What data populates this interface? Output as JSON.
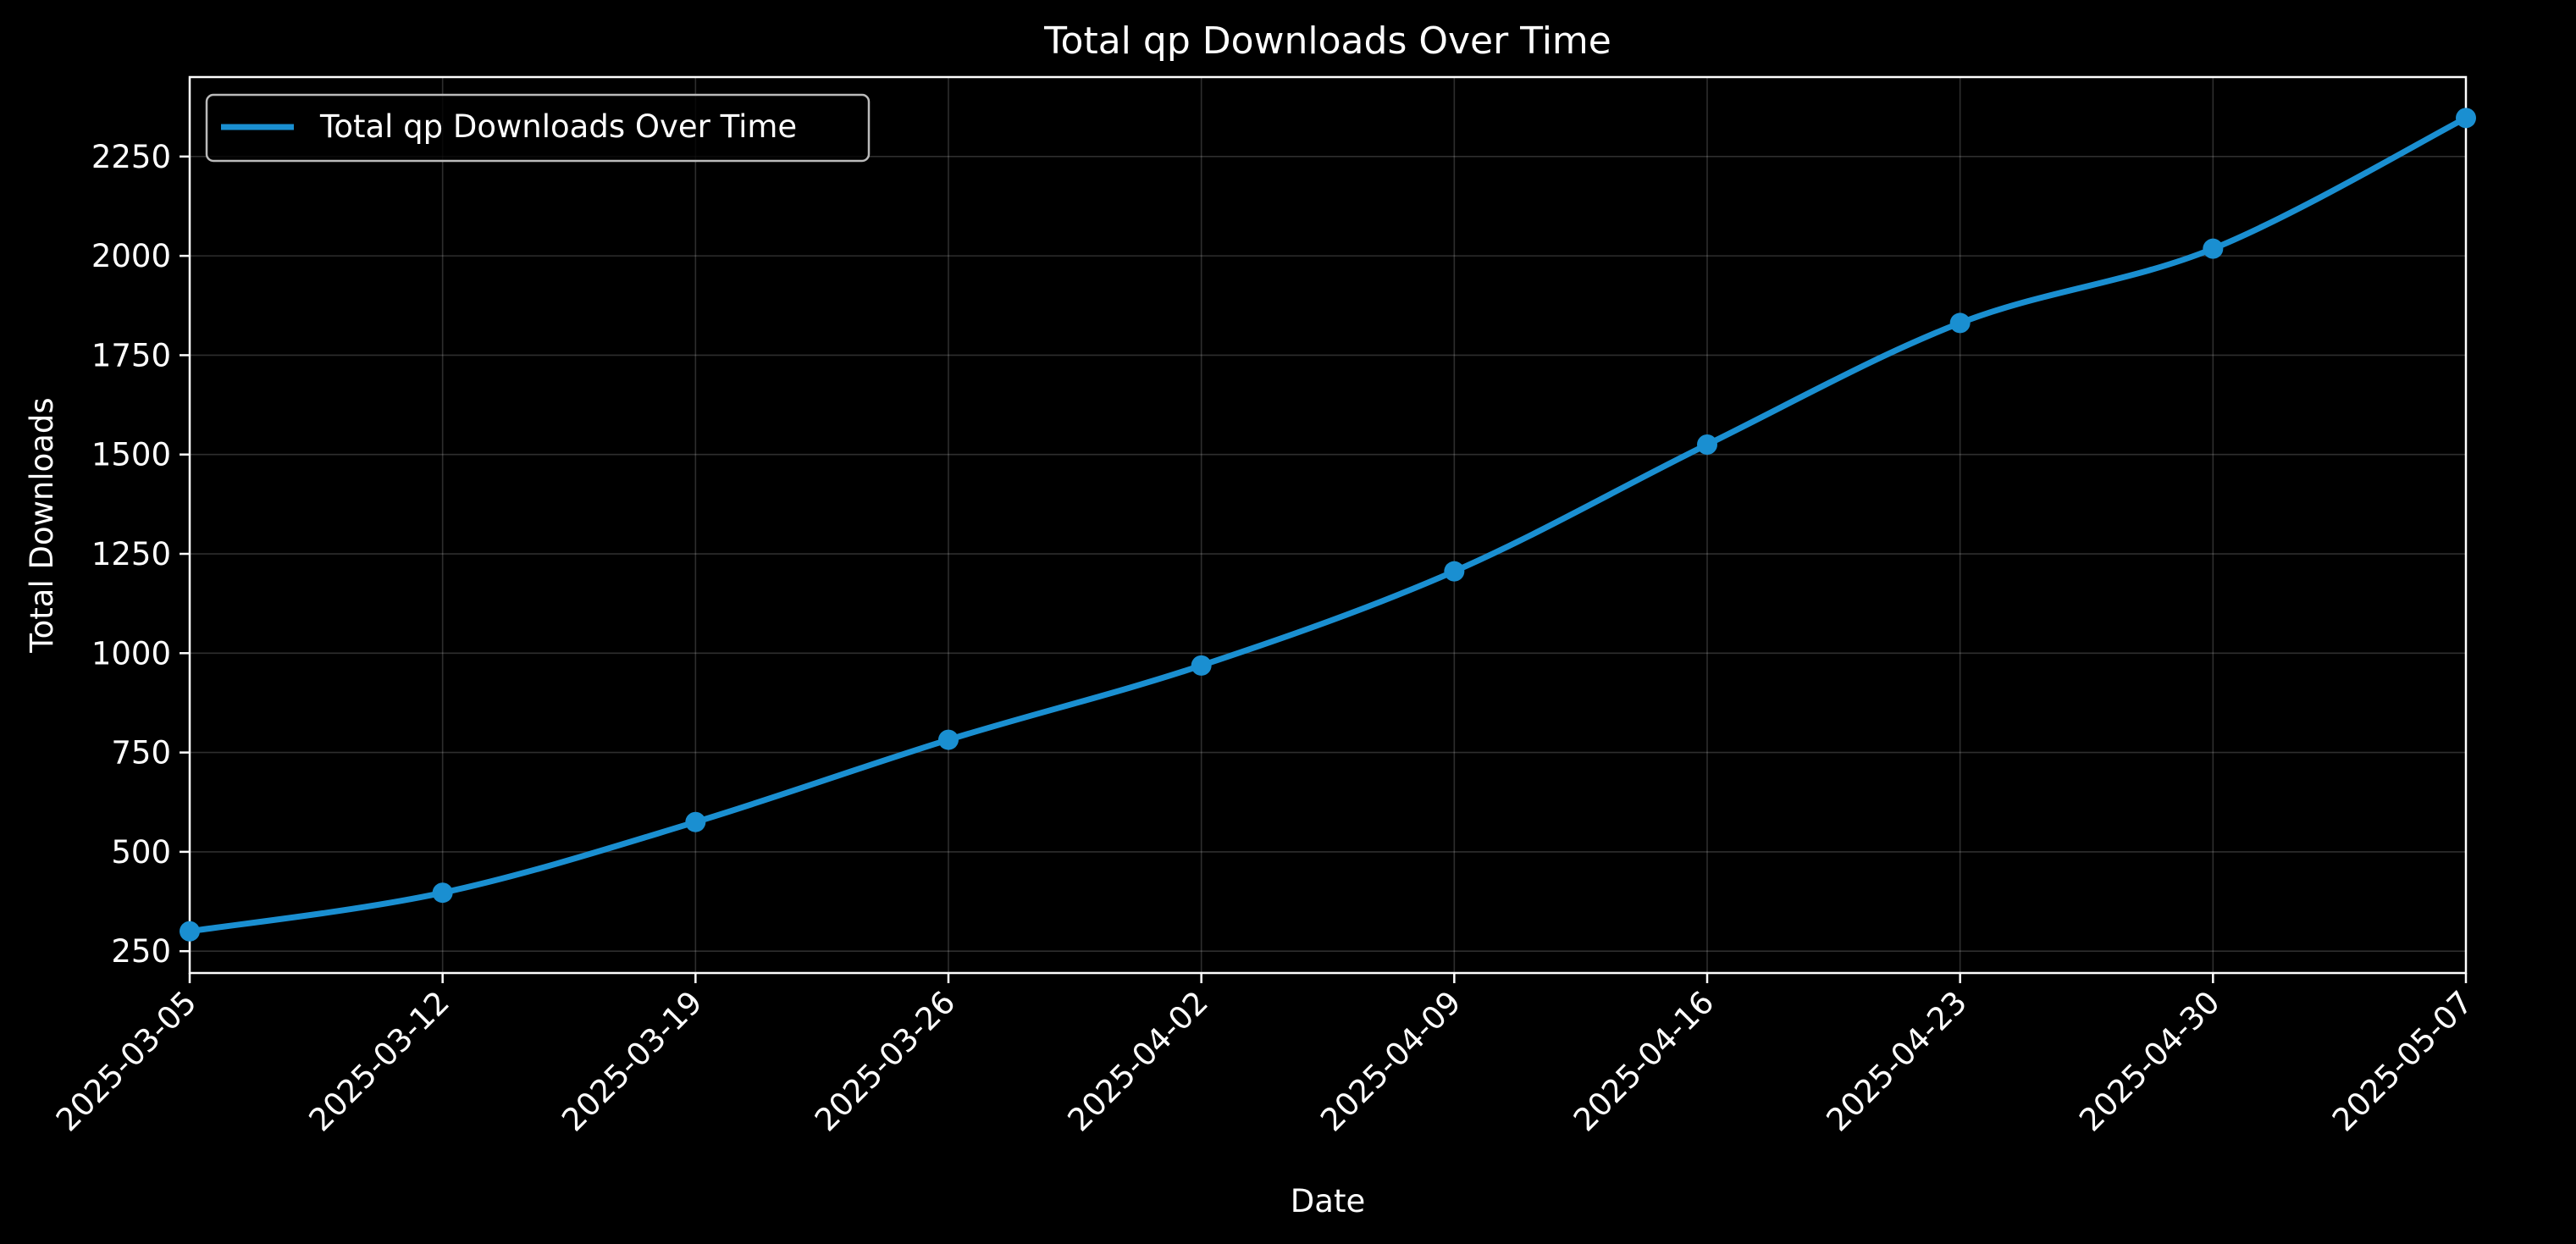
{
  "chart_data": {
    "type": "line",
    "title": "Total qp Downloads Over Time",
    "xlabel": "Date",
    "ylabel": "Total Downloads",
    "x": [
      "2025-03-05",
      "2025-03-12",
      "2025-03-19",
      "2025-03-26",
      "2025-04-02",
      "2025-04-09",
      "2025-04-16",
      "2025-04-23",
      "2025-04-30",
      "2025-05-07"
    ],
    "xlim": [
      "2025-03-05",
      "2025-05-07"
    ],
    "ylim": [
      195,
      2450
    ],
    "yticks": [
      250,
      500,
      750,
      1000,
      1250,
      1500,
      1750,
      2000,
      2250
    ],
    "grid": true,
    "legend_position": "upper-left",
    "series": [
      {
        "name": "Total qp Downloads Over Time",
        "color": "#1a8fd1",
        "marker": "circle",
        "smooth": true,
        "values": [
          300,
          397,
          575,
          782,
          969,
          1206,
          1525,
          1831,
          2018,
          2347
        ]
      }
    ]
  }
}
